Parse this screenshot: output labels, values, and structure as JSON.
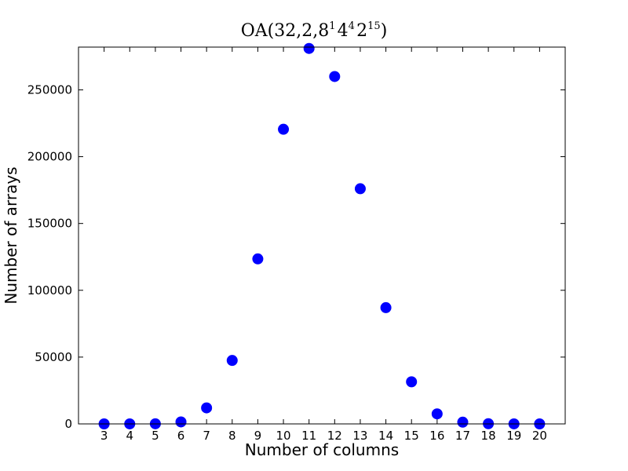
{
  "chart_data": {
    "type": "scatter",
    "title": {
      "prefix": "OA(32,2,",
      "parts": [
        {
          "base": "8",
          "sup": "1"
        },
        {
          "base": "4",
          "sup": "4"
        },
        {
          "base": "2",
          "sup": "15"
        }
      ],
      "suffix": ")"
    },
    "xlabel": "Number of columns",
    "ylabel": "Number of arrays",
    "xlim": [
      2,
      21
    ],
    "ylim": [
      0,
      282000
    ],
    "xticks": [
      3,
      4,
      5,
      6,
      7,
      8,
      9,
      10,
      11,
      12,
      13,
      14,
      15,
      16,
      17,
      18,
      19,
      20
    ],
    "yticks": [
      0,
      50000,
      100000,
      150000,
      200000,
      250000
    ],
    "grid": false,
    "marker_color": "#0000ff",
    "x": [
      3,
      4,
      5,
      6,
      7,
      8,
      9,
      10,
      11,
      12,
      13,
      14,
      15,
      16,
      17,
      18,
      19,
      20
    ],
    "y": [
      0,
      10,
      100,
      1500,
      12000,
      47500,
      123500,
      220500,
      281000,
      260000,
      176000,
      87000,
      31500,
      7500,
      1300,
      150,
      10,
      0
    ]
  }
}
